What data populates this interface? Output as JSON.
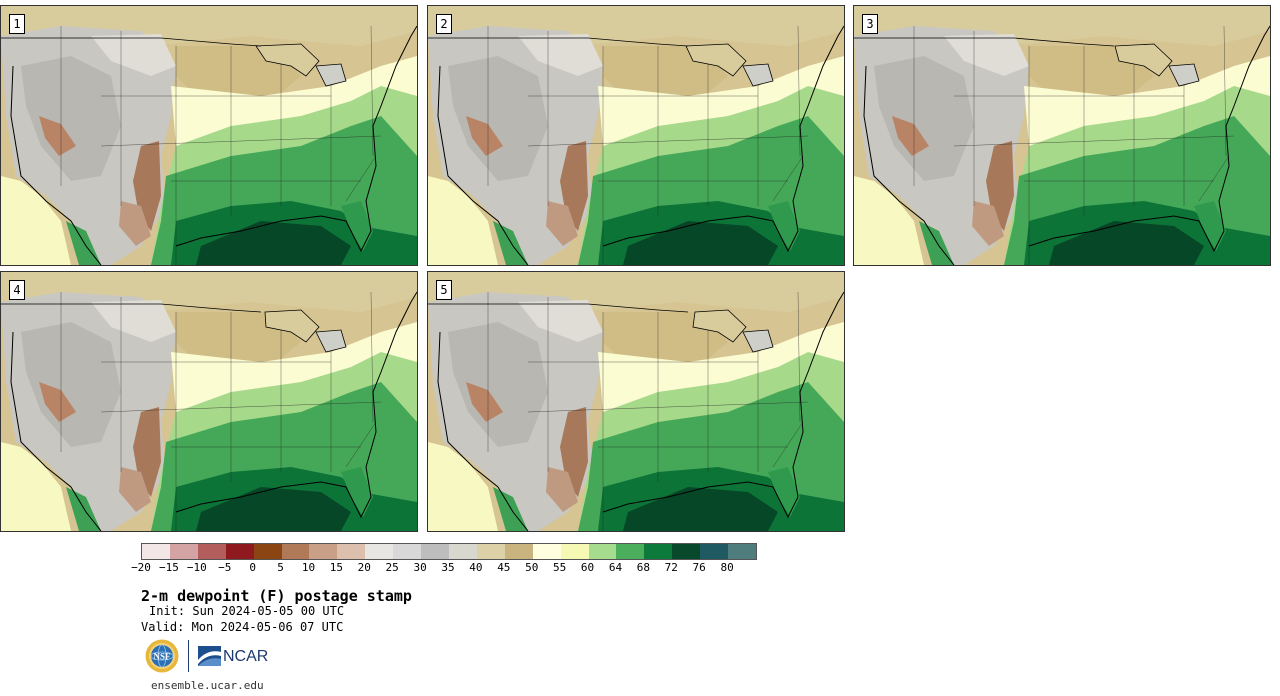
{
  "panels": [
    {
      "label": "1"
    },
    {
      "label": "2"
    },
    {
      "label": "3"
    },
    {
      "label": "4"
    },
    {
      "label": "5"
    }
  ],
  "colorbar": {
    "colors": [
      "#f3e6e6",
      "#d4a3a3",
      "#b35d5d",
      "#8e1a1f",
      "#8b4513",
      "#b07a58",
      "#c9a087",
      "#dcc0ad",
      "#e8e6e3",
      "#d8d8d8",
      "#bdbdbd",
      "#d9d8cf",
      "#ddd1a8",
      "#c9b37e",
      "#ffffe0",
      "#f6f9b4",
      "#a6dc8e",
      "#4aae5c",
      "#0b7a3a",
      "#07492a",
      "#1f5a63",
      "#4f7d7d"
    ],
    "tick_labels": [
      "−20",
      "−15",
      "−10",
      "−5",
      "0",
      "5",
      "10",
      "15",
      "20",
      "25",
      "30",
      "35",
      "40",
      "45",
      "50",
      "55",
      "60",
      "64",
      "68",
      "72",
      "76",
      "80"
    ]
  },
  "text": {
    "title": "2-m dewpoint (F) postage stamp",
    "init": "Init: Sun 2024-05-05 00 UTC",
    "valid": "Valid: Mon 2024-05-06 07 UTC",
    "site": "ensemble.ucar.edu",
    "ncar": "NCAR",
    "nsf": "NSF"
  },
  "icons": {
    "nsf_logo": "nsf-globe-logo",
    "ncar_logo": "ncar-logo"
  }
}
